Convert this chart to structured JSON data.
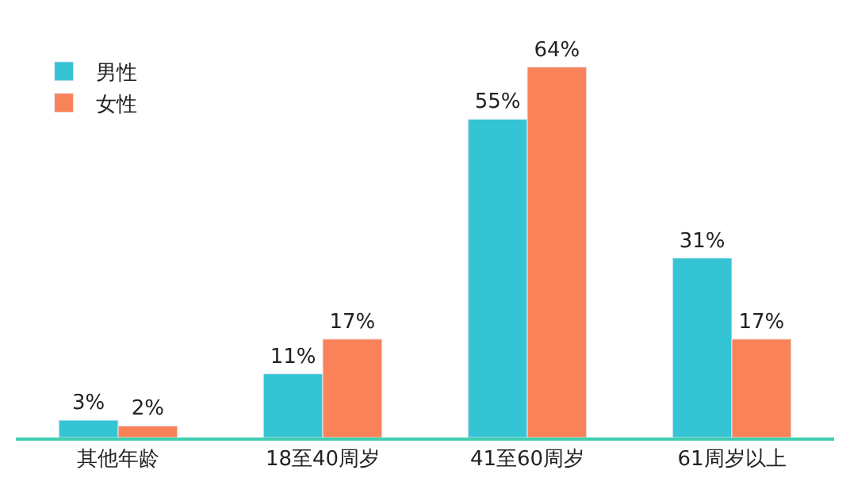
{
  "chart_data": {
    "type": "bar",
    "categories": [
      "其他年龄",
      "18至40周岁",
      "41至60周岁",
      "61周岁以上"
    ],
    "series": [
      {
        "name": "男性",
        "color": "#35c4d4",
        "values": [
          3,
          11,
          55,
          31
        ],
        "value_labels": [
          "3%",
          "11%",
          "55%",
          "31%"
        ]
      },
      {
        "name": "女性",
        "color": "#fa8258",
        "values": [
          2,
          17,
          64,
          17
        ],
        "value_labels": [
          "2%",
          "17%",
          "64%",
          "17%"
        ]
      }
    ],
    "legend": "top left"
  }
}
